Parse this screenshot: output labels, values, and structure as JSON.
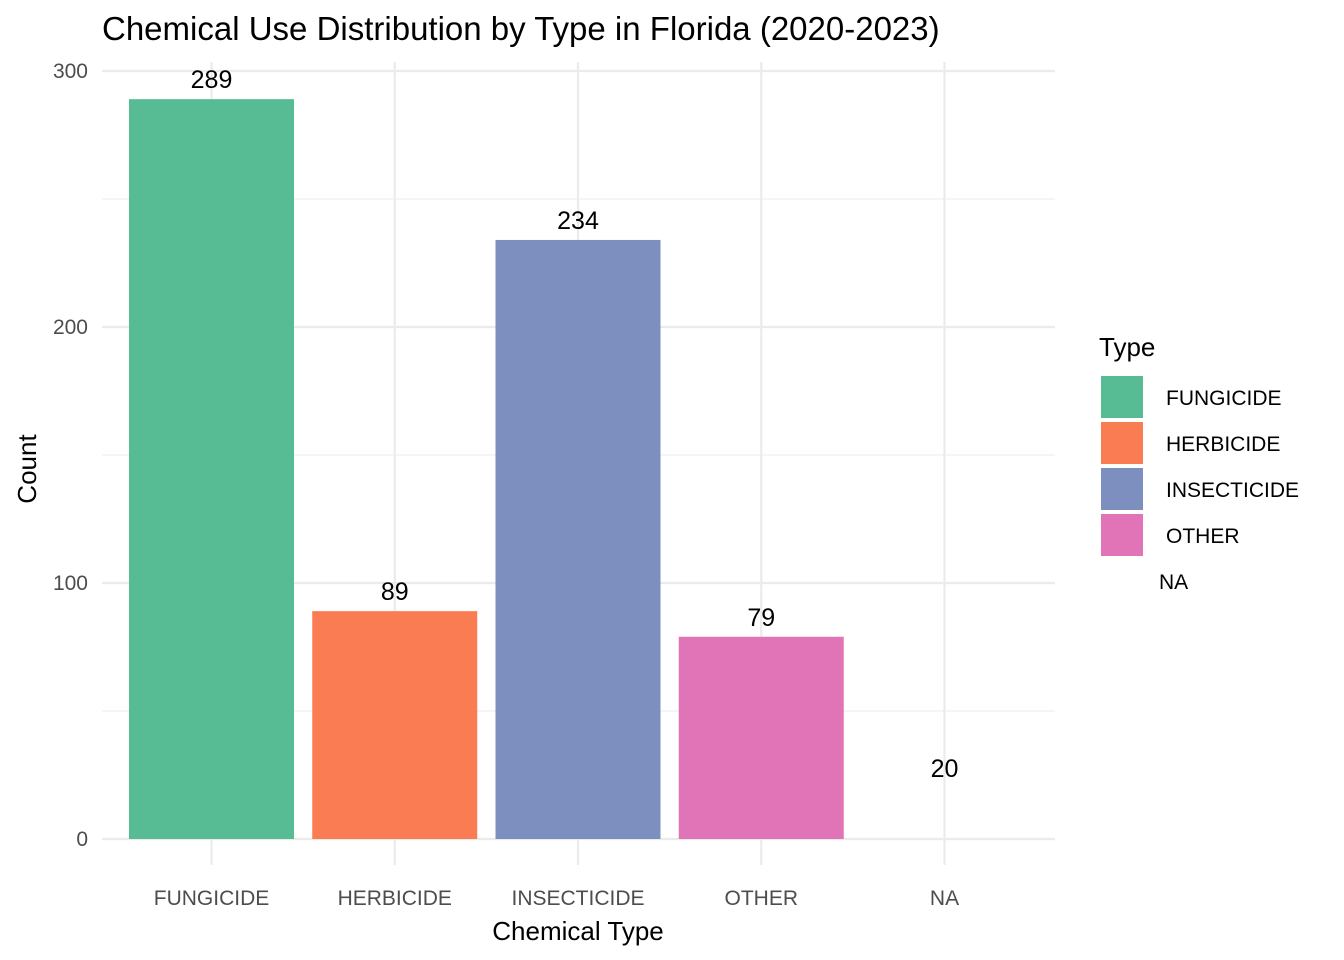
{
  "chart_data": {
    "type": "bar",
    "title": "Chemical Use Distribution by Type in Florida (2020-2023)",
    "xlabel": "Chemical Type",
    "ylabel": "Count",
    "categories": [
      "FUNGICIDE",
      "HERBICIDE",
      "INSECTICIDE",
      "OTHER",
      "NA"
    ],
    "values": [
      289,
      89,
      234,
      79,
      20
    ],
    "colors": [
      "#57bb93",
      "#f97c53",
      "#7c8fbf",
      "#e174b6",
      null
    ],
    "ylim": [
      0,
      300
    ],
    "yticks": [
      0,
      100,
      200,
      300
    ],
    "grid": true,
    "legend": {
      "title": "Type",
      "placement": "right",
      "entries": [
        "FUNGICIDE",
        "HERBICIDE",
        "INSECTICIDE",
        "OTHER",
        "NA"
      ]
    }
  }
}
